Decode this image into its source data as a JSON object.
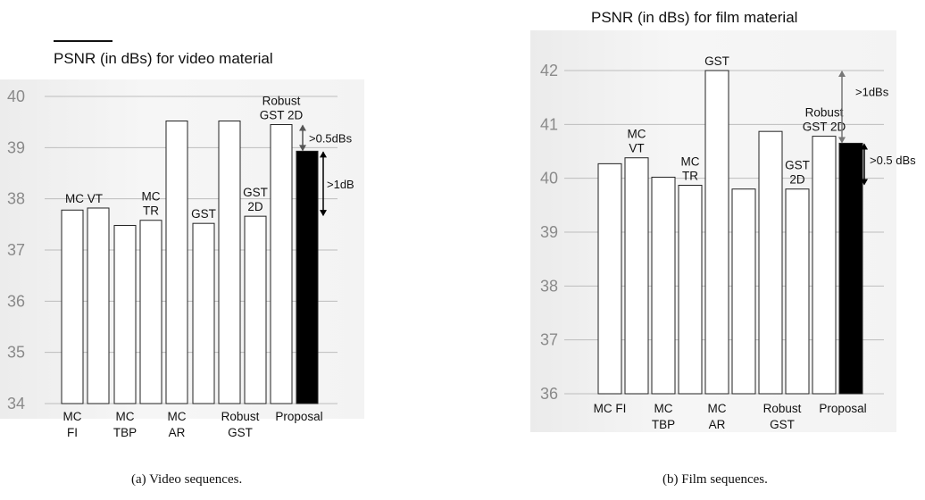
{
  "chart_data": [
    {
      "type": "bar",
      "title": "PSNR (in dBs) for video material",
      "caption": "(a) Video sequences.",
      "ylim": [
        34,
        40
      ],
      "yticks": [
        "34",
        "35",
        "36",
        "37",
        "38",
        "39",
        "40"
      ],
      "grid": true,
      "categories": [
        "MC FI",
        "MC VT",
        "MC TBP",
        "MC TR",
        "MC AR",
        "GST",
        "Robust GST",
        "GST 2D",
        "Robust GST 2D",
        "Proposal"
      ],
      "values": [
        37.78,
        37.82,
        37.48,
        37.58,
        39.52,
        37.52,
        39.52,
        37.66,
        39.45,
        38.93
      ],
      "highlight_index": 9,
      "bar_labels": [
        "",
        "MC VT",
        "",
        "MC\nTR",
        "",
        "GST",
        "",
        "GST\n2D",
        "Robust\nGST 2D",
        ""
      ],
      "x_labels": [
        "MC\nFI",
        "",
        "MC\nTBP",
        "",
        "MC\nAR",
        "",
        "Robust\nGST",
        "",
        "Proposal",
        ""
      ],
      "annotations": [
        {
          "text": ">0.5dBs",
          "from": 38.93,
          "to": 39.45
        },
        {
          "text": ">1dB",
          "from": 37.66,
          "to": 38.93
        }
      ]
    },
    {
      "type": "bar",
      "title": "PSNR (in dBs) for film material",
      "caption": "(b) Film sequences.",
      "ylim": [
        36,
        42
      ],
      "yticks": [
        "36",
        "37",
        "38",
        "39",
        "40",
        "41",
        "42"
      ],
      "grid": true,
      "categories": [
        "MC FI",
        "MC VT",
        "MC TBP",
        "MC TR",
        "MC AR",
        "GST",
        "Robust GST",
        "GST 2D",
        "Robust GST 2D",
        "Proposal"
      ],
      "values": [
        40.27,
        40.38,
        40.02,
        39.87,
        42.0,
        39.8,
        40.87,
        39.8,
        40.78,
        40.65
      ],
      "highlight_index": 9,
      "bar_labels": [
        "",
        "MC\nVT",
        "",
        "MC\nTR",
        "GST",
        "",
        "",
        "GST\n2D",
        "Robust\nGST 2D",
        ""
      ],
      "x_labels": [
        "MC FI",
        "",
        "MC\nTBP",
        "",
        "MC\nAR",
        "",
        "Robust\nGST",
        "",
        "Proposal",
        ""
      ],
      "annotations": [
        {
          "text": ">1dBs",
          "from": 40.65,
          "to": 42.0
        },
        {
          "text": ">0.5 dBs",
          "from": 39.87,
          "to": 40.65
        }
      ]
    }
  ]
}
